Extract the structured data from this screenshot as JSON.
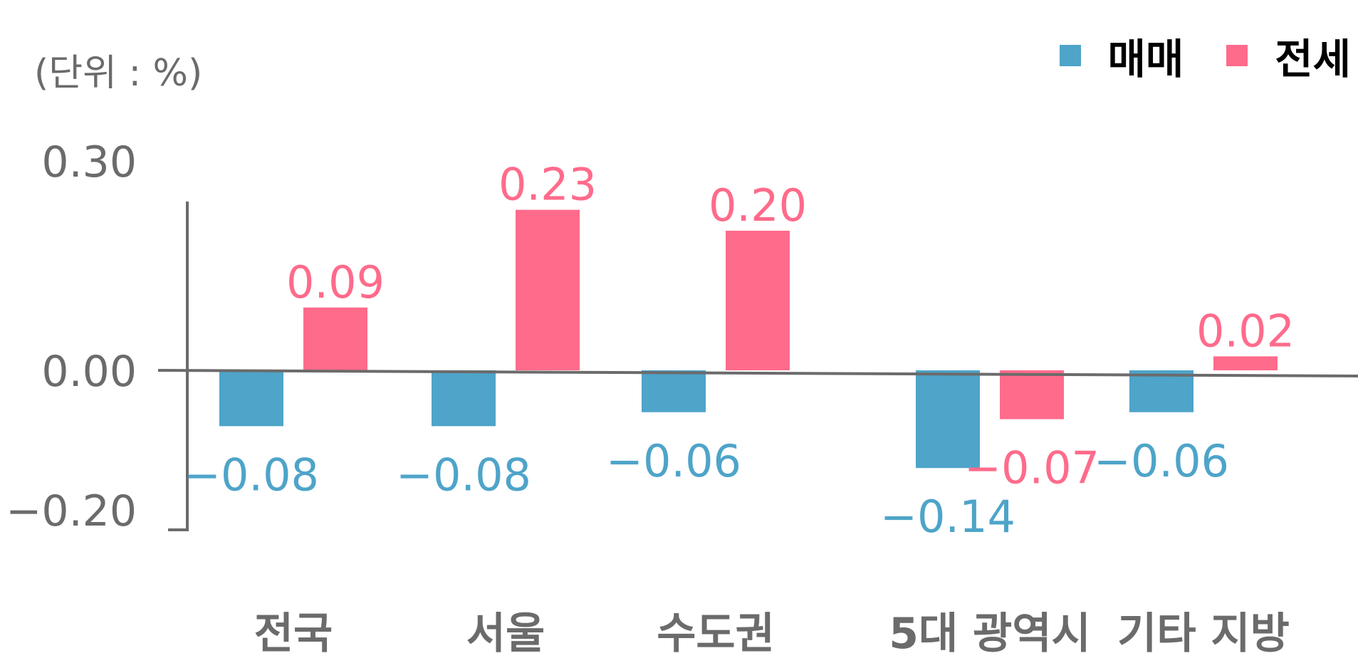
{
  "unit_label": "(단위 : %)",
  "colors": {
    "sale": "#4ea4c9",
    "jeonse": "#ff6b8b",
    "axis": "#6b6b6b"
  },
  "chart_data": {
    "type": "bar",
    "categories": [
      "전국",
      "서울",
      "수도권",
      "5대 광역시",
      "기타 지방"
    ],
    "series": [
      {
        "name": "매매",
        "values": [
          -0.08,
          -0.08,
          -0.06,
          -0.14,
          -0.06
        ]
      },
      {
        "name": "전세",
        "values": [
          0.09,
          0.23,
          0.2,
          -0.07,
          0.02
        ]
      }
    ],
    "data_labels": [
      [
        "−0.08",
        "−0.08",
        "−0.06",
        "−0.14",
        "−0.06"
      ],
      [
        "0.09",
        "0.23",
        "0.20",
        "−0.07",
        "0.02"
      ]
    ],
    "ytick_labels": [
      "0.30",
      "0.00",
      "−0.20"
    ],
    "yticks": [
      0.3,
      0.0,
      -0.2
    ],
    "ylim": [
      -0.2,
      0.3
    ],
    "legend": "top-right",
    "grid": false
  }
}
